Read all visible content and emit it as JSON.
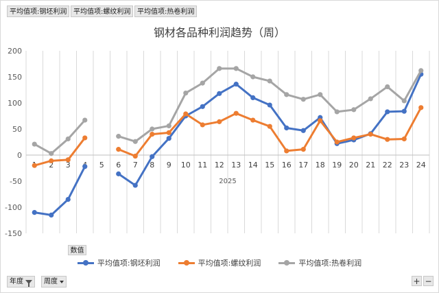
{
  "field_chips": [
    "平均值项:钢坯利润",
    "平均值项:螺纹利润",
    "平均值项:热卷利润"
  ],
  "values_button": "数值",
  "filters": [
    {
      "label": "年度"
    },
    {
      "label": "周度"
    }
  ],
  "zoom": {
    "plus": "+",
    "minus": "−"
  },
  "chart_data": {
    "type": "line",
    "title": "钢材各品种利润趋势（周）",
    "xlabel": "2025",
    "ylabel": "",
    "categories": [
      "1",
      "2",
      "3",
      "4",
      "5",
      "6",
      "7",
      "8",
      "9",
      "10",
      "11",
      "12",
      "13",
      "14",
      "15",
      "16",
      "17",
      "18",
      "19",
      "20",
      "21",
      "22",
      "23",
      "24"
    ],
    "ylim": [
      -150,
      200
    ],
    "yticks": [
      -150,
      -100,
      -50,
      0,
      50,
      100,
      150,
      200
    ],
    "grid": "vertical",
    "legend_position": "bottom",
    "series": [
      {
        "name": "平均值项:钢坯利润",
        "color": "#4472C4",
        "values": [
          -110,
          -115,
          -85,
          -22,
          null,
          -36,
          -58,
          -3,
          32,
          75,
          93,
          118,
          136,
          110,
          96,
          52,
          47,
          72,
          22,
          29,
          41,
          83,
          84,
          155
        ]
      },
      {
        "name": "平均值项:螺纹利润",
        "color": "#ED7D31",
        "values": [
          -20,
          -11,
          -9,
          33,
          null,
          11,
          -2,
          40,
          43,
          79,
          58,
          64,
          80,
          67,
          55,
          8,
          11,
          66,
          25,
          33,
          40,
          30,
          31,
          91
        ]
      },
      {
        "name": "平均值项:热卷利润",
        "color": "#A5A5A5",
        "values": [
          21,
          3,
          31,
          67,
          null,
          36,
          26,
          50,
          56,
          119,
          138,
          166,
          166,
          150,
          142,
          116,
          107,
          116,
          83,
          87,
          108,
          131,
          104,
          162
        ]
      }
    ]
  }
}
